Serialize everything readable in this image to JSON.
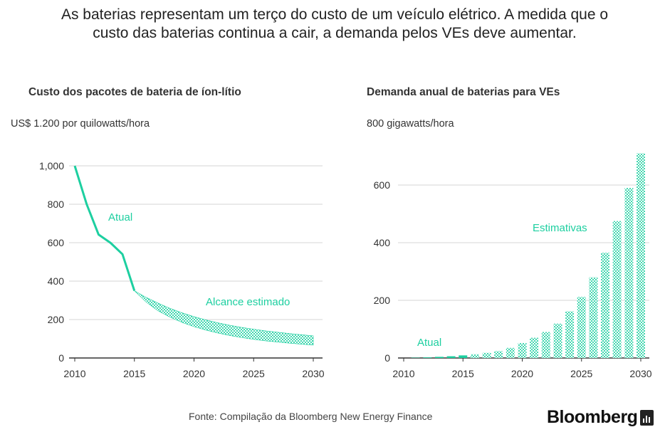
{
  "headline": "As baterias representam um terço do custo de um veículo elétrico. A medida que o custo das baterias continua a cair, a demanda pelos VEs deve aumentar.",
  "source": "Fonte: Compilação da Bloomberg New Energy Finance",
  "brand": "Bloomberg",
  "colors": {
    "accent": "#1dcfa0",
    "grid": "#d6d6d6",
    "axis": "#333333"
  },
  "chart_data": [
    {
      "type": "line",
      "title": "Custo dos pacotes de bateria de íon-lítio",
      "ylabel": "US$ 1.200 por quilowatts/hora",
      "ylim": [
        0,
        1200
      ],
      "yticks": [
        0,
        200,
        400,
        600,
        800,
        1000
      ],
      "ytick_labels": [
        "0",
        "200",
        "400",
        "600",
        "800",
        "1,000"
      ],
      "xlim": [
        2010,
        2030
      ],
      "xticks": [
        2010,
        2015,
        2020,
        2025,
        2030
      ],
      "xtick_labels": [
        "2010",
        "2015",
        "2020",
        "2025",
        "2030"
      ],
      "grid": true,
      "series": [
        {
          "name": "Atual",
          "x": [
            2010,
            2011,
            2012,
            2013,
            2014,
            2015
          ],
          "values": [
            1000,
            800,
            642,
            599,
            540,
            350
          ]
        },
        {
          "name": "Alcance estimado",
          "x": [
            2015,
            2016,
            2017,
            2018,
            2019,
            2020,
            2021,
            2022,
            2023,
            2024,
            2025,
            2026,
            2027,
            2028,
            2029,
            2030
          ],
          "upper": [
            350,
            315,
            285,
            258,
            235,
            215,
            198,
            183,
            170,
            159,
            150,
            141,
            134,
            127,
            121,
            115
          ],
          "lower": [
            350,
            290,
            245,
            212,
            185,
            163,
            145,
            130,
            117,
            106,
            97,
            89,
            83,
            77,
            72,
            67
          ]
        }
      ]
    },
    {
      "type": "bar",
      "title": "Demanda anual de baterias para VEs",
      "ylabel": "800 gigawatts/hora",
      "ylim": [
        0,
        800
      ],
      "yticks": [
        0,
        200,
        400,
        600
      ],
      "ytick_labels": [
        "0",
        "200",
        "400",
        "600"
      ],
      "xlim": [
        2010,
        2030
      ],
      "xticks": [
        2010,
        2015,
        2020,
        2025,
        2030
      ],
      "xtick_labels": [
        "2010",
        "2015",
        "2020",
        "2025",
        "2030"
      ],
      "grid": true,
      "series": [
        {
          "name": "Atual",
          "x": [
            2011,
            2012,
            2013,
            2014,
            2015
          ],
          "values": [
            1,
            2,
            4,
            6,
            9
          ]
        },
        {
          "name": "Estimativas",
          "x": [
            2016,
            2017,
            2018,
            2019,
            2020,
            2021,
            2022,
            2023,
            2024,
            2025,
            2026,
            2027,
            2028,
            2029,
            2030
          ],
          "values": [
            13,
            18,
            24,
            35,
            52,
            70,
            90,
            119,
            162,
            212,
            280,
            365,
            475,
            590,
            710
          ]
        }
      ]
    }
  ]
}
